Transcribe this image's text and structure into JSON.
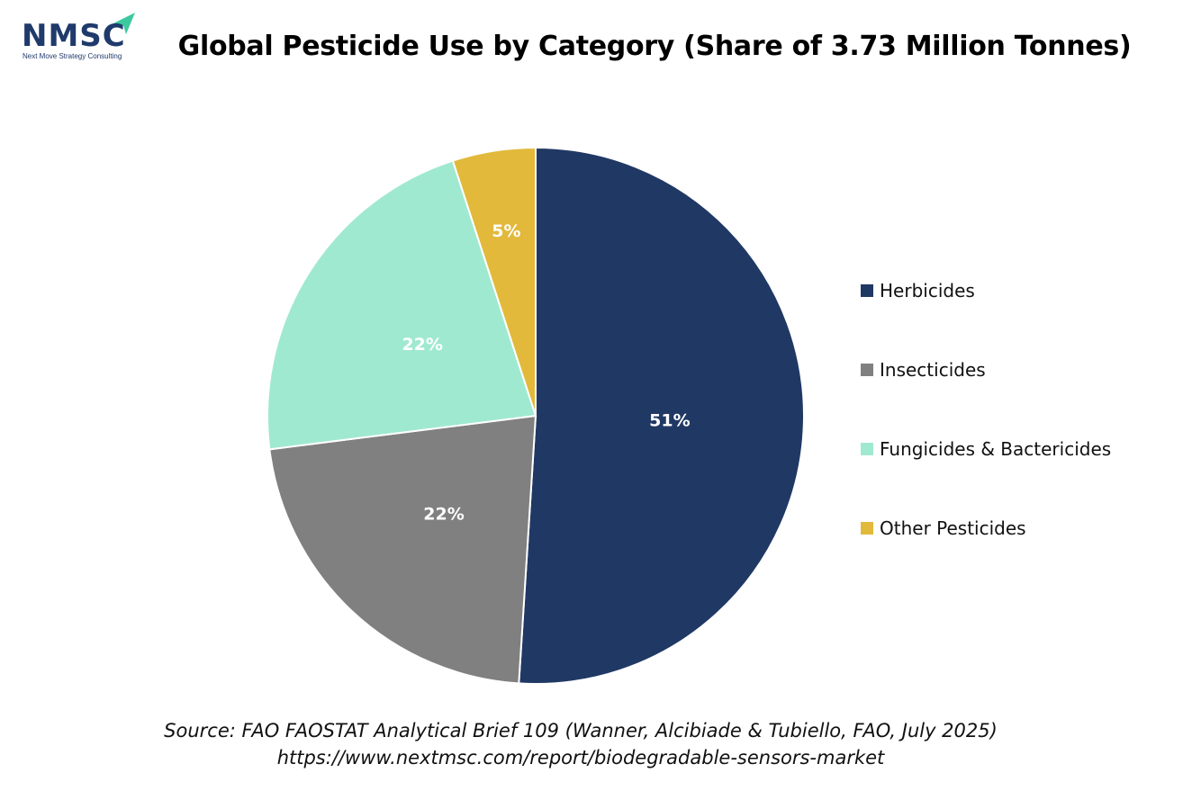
{
  "logo": {
    "name": "NMSC",
    "tagline": "Next Move Strategy Consulting",
    "accent_color": "#3cc9a0"
  },
  "source_line": "Source: FAO FAOSTAT Analytical Brief 109 (Wanner, Alcibiade & Tubiello, FAO, July 2025)",
  "url_line": "https://www.nextmsc.com/report/biodegradable-sensors-market",
  "chart_data": {
    "type": "pie",
    "title": "Global Pesticide Use by Category (Share of 3.73 Million Tonnes)",
    "legend_position": "right",
    "categories": [
      "Herbicides",
      "Insecticides",
      "Fungicides & Bactericides",
      "Other Pesticides"
    ],
    "values": [
      51,
      22,
      22,
      5
    ],
    "labels": [
      "51%",
      "22%",
      "22%",
      "5%"
    ],
    "colors": [
      "#203864",
      "#808080",
      "#a0e9d1",
      "#e2b93b"
    ]
  }
}
